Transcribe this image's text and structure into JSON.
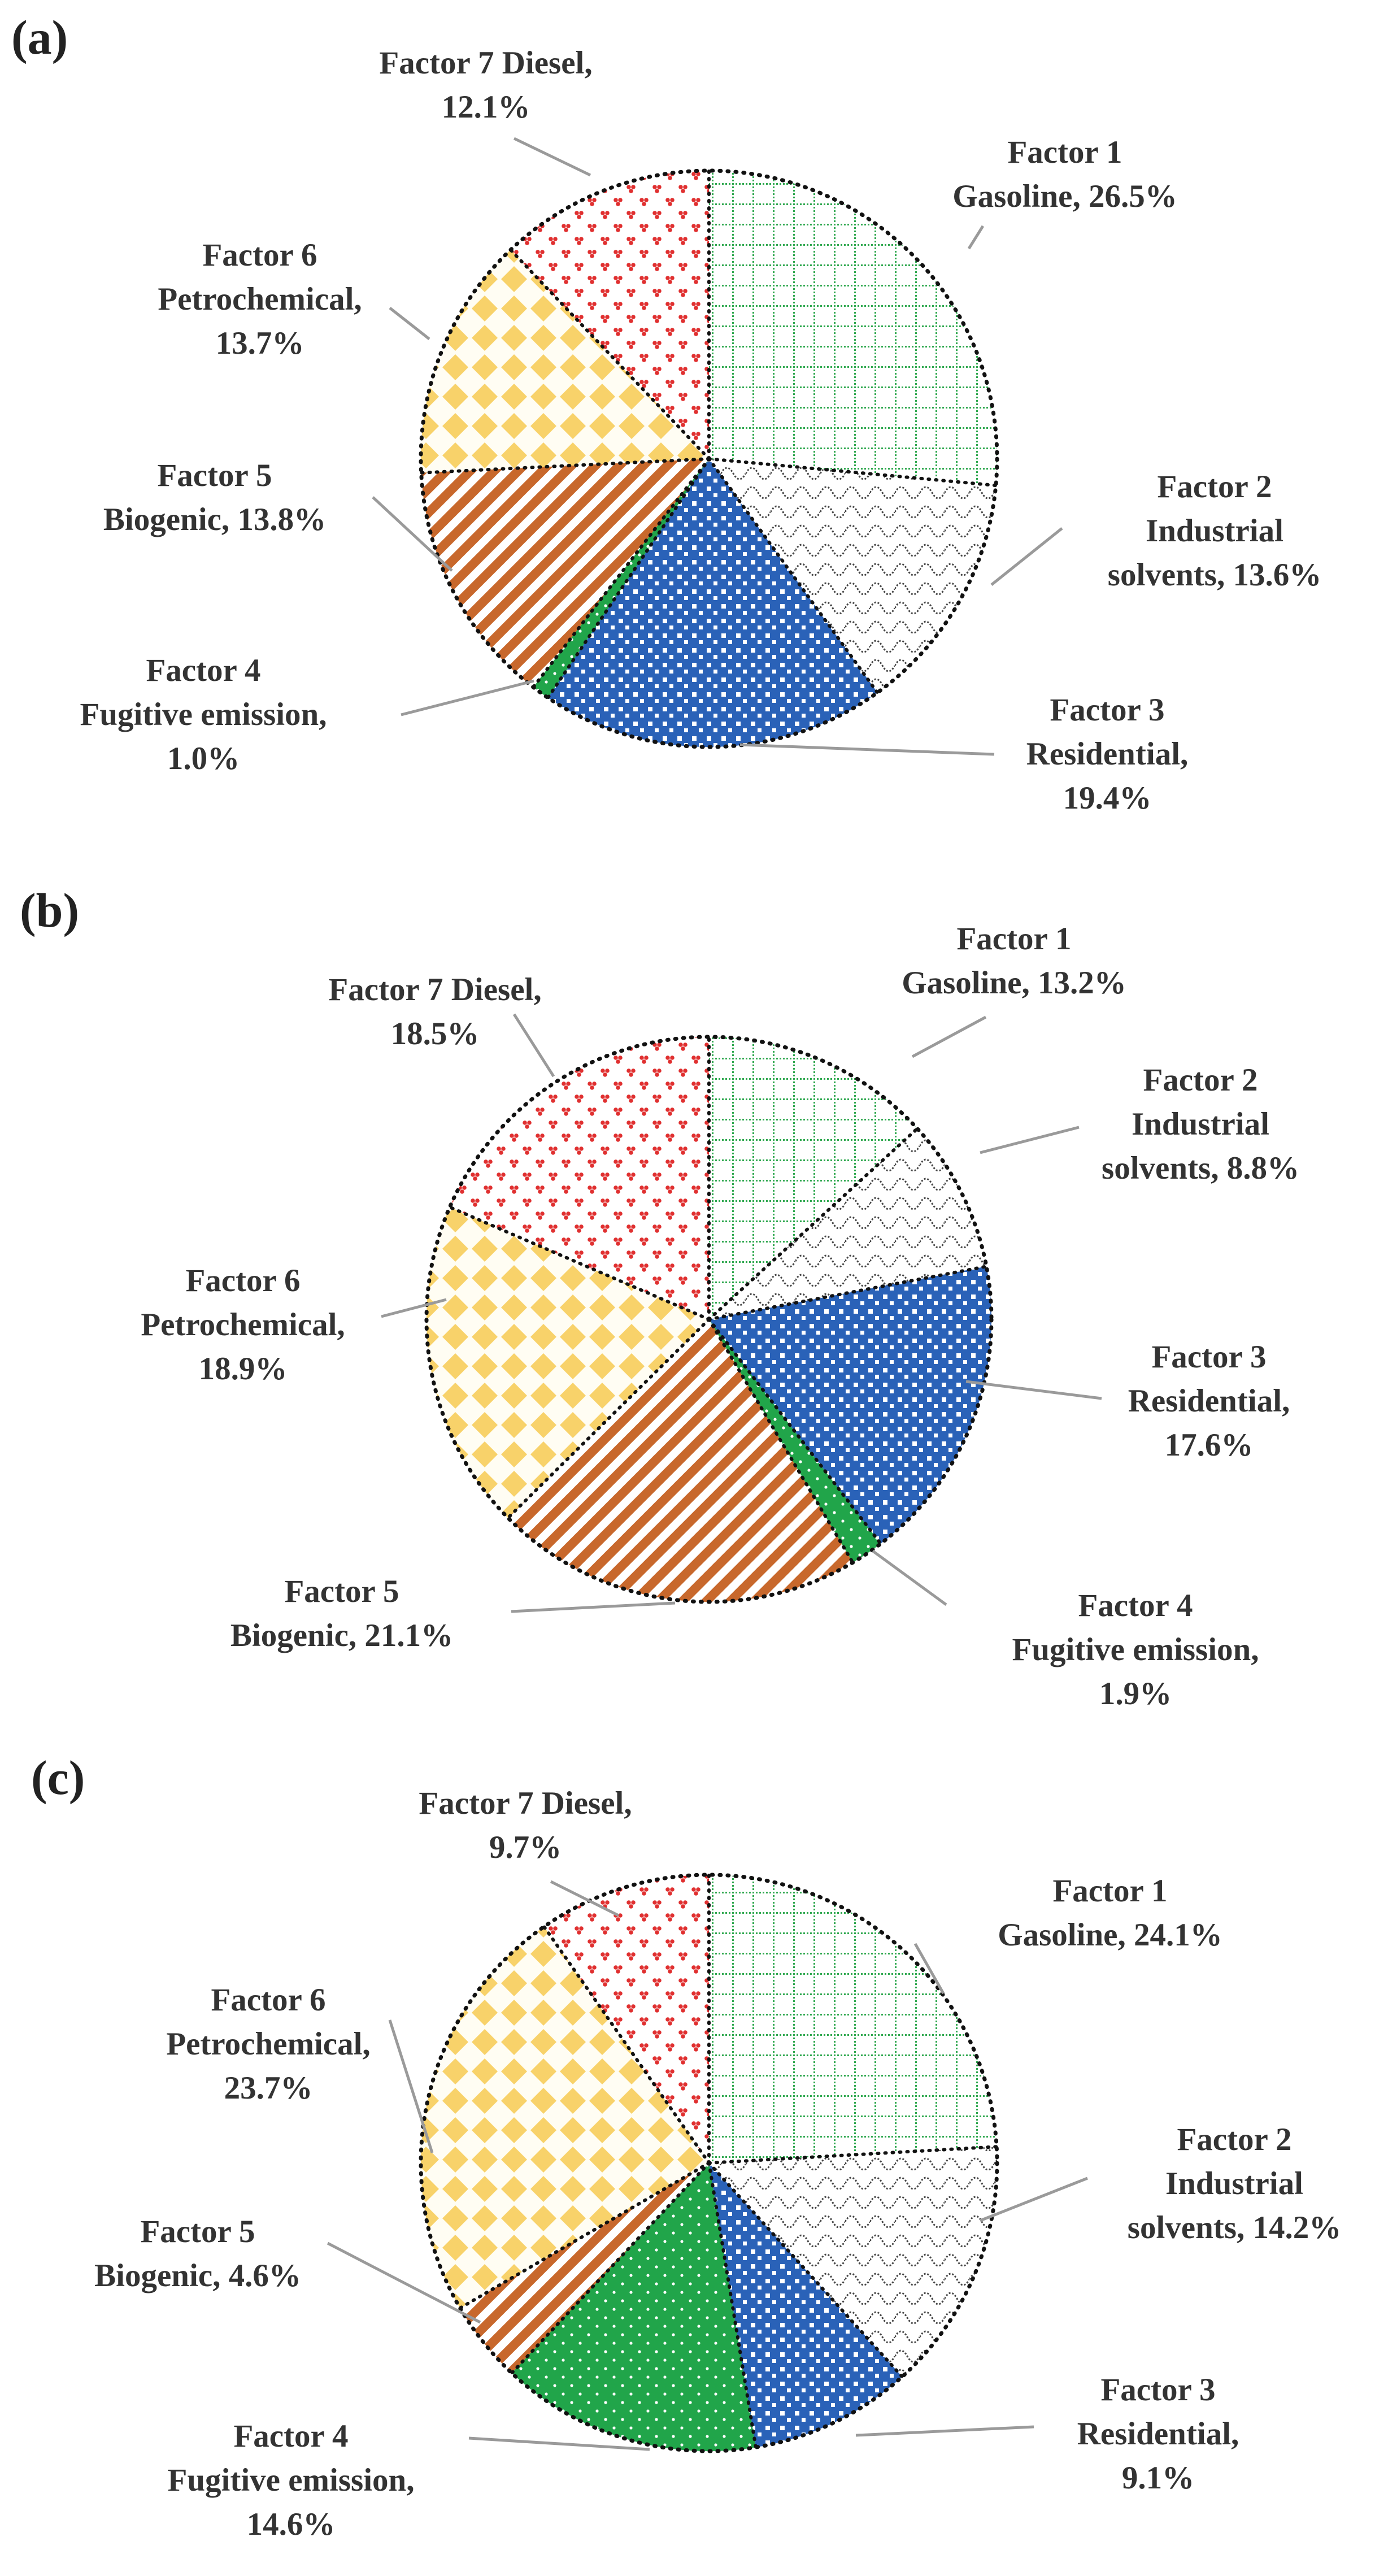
{
  "chart_data": [
    {
      "type": "pie",
      "panel_label": "(a)",
      "slices": [
        {
          "category": "gasoline",
          "name": "Factor 1 Gasoline",
          "value": 26.5,
          "label_lines": [
            "Factor 1",
            "Gasoline, 26.5%"
          ]
        },
        {
          "category": "industrial",
          "name": "Factor 2 Industrial solvents",
          "value": 13.6,
          "label_lines": [
            "Factor 2",
            "Industrial",
            "solvents, 13.6%"
          ]
        },
        {
          "category": "residential",
          "name": "Factor 3 Residential",
          "value": 19.4,
          "label_lines": [
            "Factor 3",
            "Residential,",
            "19.4%"
          ]
        },
        {
          "category": "fugitive",
          "name": "Factor 4 Fugitive emission",
          "value": 1.0,
          "label_lines": [
            "Factor 4",
            "Fugitive emission,",
            "1.0%"
          ]
        },
        {
          "category": "biogenic",
          "name": "Factor 5 Biogenic",
          "value": 13.8,
          "label_lines": [
            "Factor 5",
            "Biogenic, 13.8%"
          ]
        },
        {
          "category": "petrochemical",
          "name": "Factor 6 Petrochemical",
          "value": 13.7,
          "label_lines": [
            "Factor 6",
            "Petrochemical,",
            "13.7%"
          ]
        },
        {
          "category": "diesel",
          "name": "Factor 7 Diesel",
          "value": 12.1,
          "label_lines": [
            "Factor 7 Diesel,",
            "12.1%"
          ]
        }
      ]
    },
    {
      "type": "pie",
      "panel_label": "(b)",
      "slices": [
        {
          "category": "gasoline",
          "name": "Factor 1 Gasoline",
          "value": 13.2,
          "label_lines": [
            "Factor 1",
            "Gasoline, 13.2%"
          ]
        },
        {
          "category": "industrial",
          "name": "Factor 2 Industrial solvents",
          "value": 8.8,
          "label_lines": [
            "Factor 2",
            "Industrial",
            "solvents, 8.8%"
          ]
        },
        {
          "category": "residential",
          "name": "Factor 3 Residential",
          "value": 17.6,
          "label_lines": [
            "Factor 3",
            "Residential,",
            "17.6%"
          ]
        },
        {
          "category": "fugitive",
          "name": "Factor 4 Fugitive emission",
          "value": 1.9,
          "label_lines": [
            "Factor 4",
            "Fugitive emission,",
            "1.9%"
          ]
        },
        {
          "category": "biogenic",
          "name": "Factor 5 Biogenic",
          "value": 21.1,
          "label_lines": [
            "Factor 5",
            "Biogenic, 21.1%"
          ]
        },
        {
          "category": "petrochemical",
          "name": "Factor 6 Petrochemical",
          "value": 18.9,
          "label_lines": [
            "Factor 6",
            "Petrochemical,",
            "18.9%"
          ]
        },
        {
          "category": "diesel",
          "name": "Factor 7 Diesel",
          "value": 18.5,
          "label_lines": [
            "Factor 7 Diesel,",
            "18.5%"
          ]
        }
      ]
    },
    {
      "type": "pie",
      "panel_label": "(c)",
      "slices": [
        {
          "category": "gasoline",
          "name": "Factor 1 Gasoline",
          "value": 24.1,
          "label_lines": [
            "Factor 1",
            "Gasoline, 24.1%"
          ]
        },
        {
          "category": "industrial",
          "name": "Factor 2 Industrial solvents",
          "value": 14.2,
          "label_lines": [
            "Factor 2",
            "Industrial",
            "solvents, 14.2%"
          ]
        },
        {
          "category": "residential",
          "name": "Factor 3 Residential",
          "value": 9.1,
          "label_lines": [
            "Factor 3",
            "Residential,",
            "9.1%"
          ]
        },
        {
          "category": "fugitive",
          "name": "Factor 4 Fugitive emission",
          "value": 14.6,
          "label_lines": [
            "Factor 4",
            "Fugitive emission,",
            "14.6%"
          ]
        },
        {
          "category": "biogenic",
          "name": "Factor 5 Biogenic",
          "value": 4.6,
          "label_lines": [
            "Factor 5",
            "Biogenic, 4.6%"
          ]
        },
        {
          "category": "petrochemical",
          "name": "Factor 6 Petrochemical",
          "value": 23.7,
          "label_lines": [
            "Factor 6",
            "Petrochemical,",
            "23.7%"
          ]
        },
        {
          "category": "diesel",
          "name": "Factor 7 Diesel",
          "value": 9.7,
          "label_lines": [
            "Factor 7 Diesel,",
            "9.7%"
          ]
        }
      ]
    }
  ],
  "colors": {
    "gasoline": "#2fa84f",
    "industrial": "#555555",
    "residential": "#2a62b8",
    "fugitive": "#21a54a",
    "biogenic": "#c8682c",
    "petrochemical": "#f8d26a",
    "diesel": "#e03030"
  }
}
